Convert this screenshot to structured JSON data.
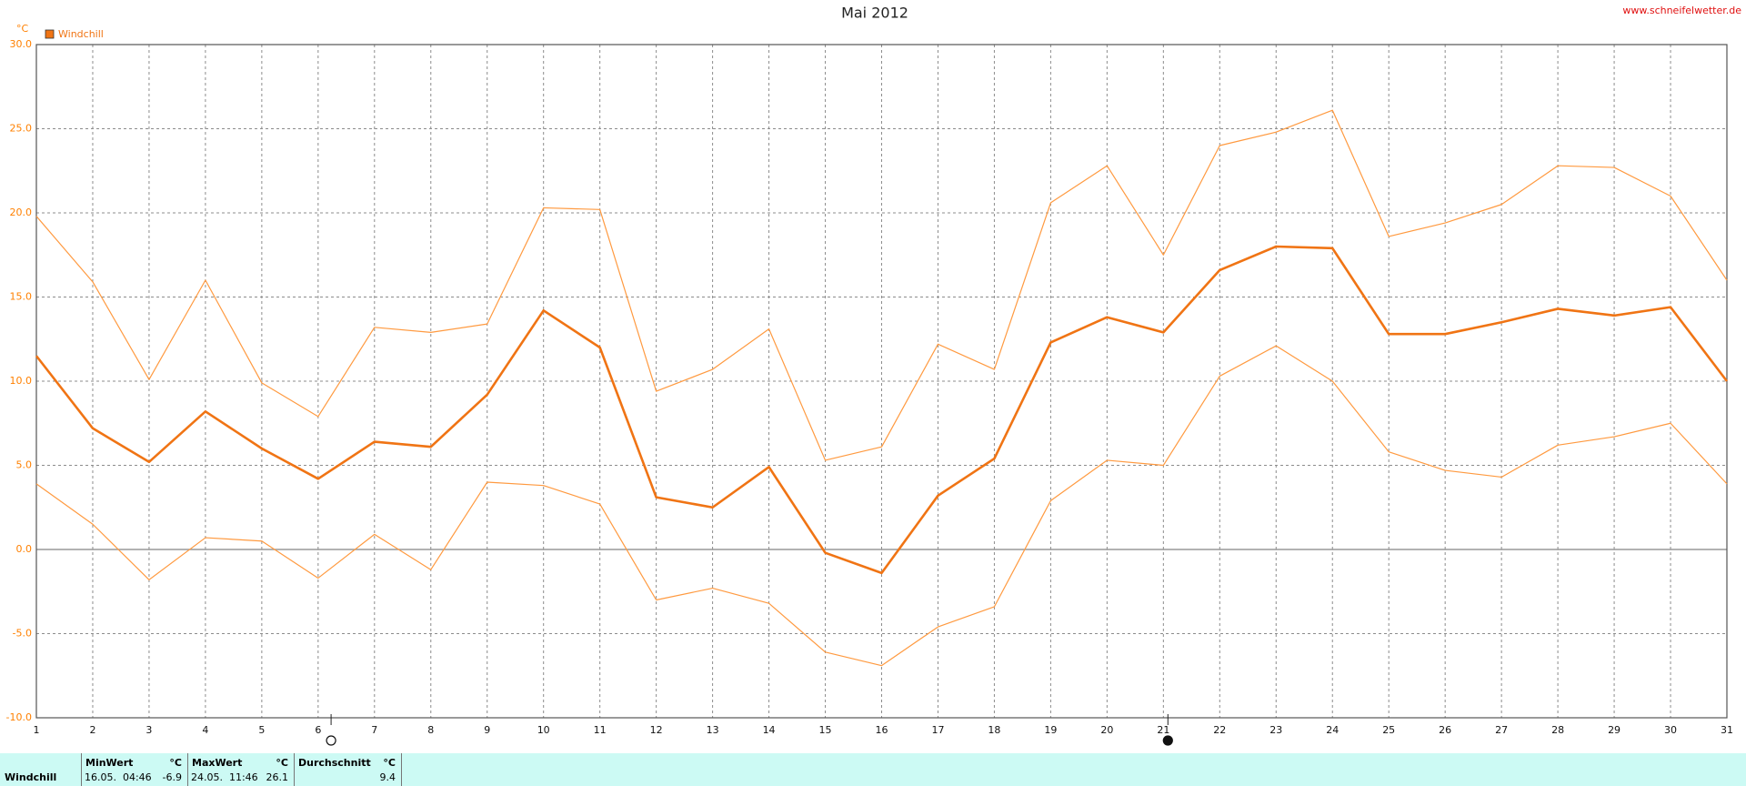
{
  "chart_data": {
    "type": "line",
    "title": "Mai 2012",
    "watermark": "www.schneifelwetter.de",
    "y_unit": "°C",
    "legend": {
      "label": "Windchill",
      "color": "#f07414",
      "corner": "top-left"
    },
    "x": [
      1,
      2,
      3,
      4,
      5,
      6,
      7,
      8,
      9,
      10,
      11,
      12,
      13,
      14,
      15,
      16,
      17,
      18,
      19,
      20,
      21,
      22,
      23,
      24,
      25,
      26,
      27,
      28,
      29,
      30,
      31
    ],
    "xlim": [
      1,
      31
    ],
    "xticks": [
      1,
      2,
      3,
      4,
      5,
      6,
      7,
      8,
      9,
      10,
      11,
      12,
      13,
      14,
      15,
      16,
      17,
      18,
      19,
      20,
      21,
      22,
      23,
      24,
      25,
      26,
      27,
      28,
      29,
      30,
      31
    ],
    "ylim": [
      -10,
      30
    ],
    "yticks": [
      {
        "value": -10,
        "label": "-10.0"
      },
      {
        "value": -5,
        "label": "-5.0"
      },
      {
        "value": 0,
        "label": "0.0"
      },
      {
        "value": 5,
        "label": "5.0"
      },
      {
        "value": 10,
        "label": "10.0"
      },
      {
        "value": 15,
        "label": "15.0"
      },
      {
        "value": 20,
        "label": "20.0"
      },
      {
        "value": 25,
        "label": "25.0"
      },
      {
        "value": 30,
        "label": "30.0"
      }
    ],
    "grid": true,
    "series": [
      {
        "name": "Windchill",
        "color": "#f07414",
        "width": 2.6,
        "values": [
          11.5,
          7.2,
          5.2,
          8.2,
          6.0,
          4.2,
          6.4,
          6.1,
          9.2,
          14.2,
          12.0,
          3.1,
          2.5,
          4.9,
          -0.2,
          -1.4,
          3.2,
          5.4,
          12.3,
          13.8,
          12.9,
          16.6,
          18.0,
          17.9,
          12.8,
          12.8,
          13.5,
          14.3,
          13.9,
          14.4,
          10.0
        ]
      },
      {
        "color": "#ff9a40",
        "width": 1.2,
        "values": [
          19.8,
          15.9,
          10.1,
          16.0,
          9.9,
          7.9,
          13.2,
          12.9,
          13.4,
          20.3,
          20.2,
          9.4,
          10.7,
          13.1,
          5.3,
          6.1,
          12.2,
          10.7,
          20.6,
          22.8,
          17.5,
          24.0,
          24.8,
          26.1,
          18.6,
          19.4,
          20.5,
          22.8,
          22.7,
          21.0,
          16.0
        ]
      },
      {
        "color": "#ff9a40",
        "width": 1.2,
        "values": [
          3.9,
          1.5,
          -1.8,
          0.7,
          0.5,
          -1.7,
          0.9,
          -1.2,
          4.0,
          3.8,
          2.7,
          -3.0,
          -2.3,
          -3.2,
          -6.1,
          -6.9,
          -4.6,
          -3.4,
          2.9,
          5.3,
          5.0,
          10.3,
          12.1,
          10.0,
          5.8,
          4.7,
          4.3,
          6.2,
          6.7,
          7.5,
          3.9
        ]
      }
    ],
    "moon_markers": [
      {
        "x": 6.23,
        "filled": false
      },
      {
        "x": 21.08,
        "filled": true
      }
    ]
  },
  "summary": {
    "row_label": "Windchill",
    "columns": [
      {
        "header": "MinWert",
        "unit": "°C",
        "time": "16.05.  04:46",
        "value": -6.9
      },
      {
        "header": "MaxWert",
        "unit": "°C",
        "time": "24.05.  11:46",
        "value": 26.1
      },
      {
        "header": "Durchschnitt",
        "unit": "°C",
        "value": 9.4
      }
    ]
  }
}
